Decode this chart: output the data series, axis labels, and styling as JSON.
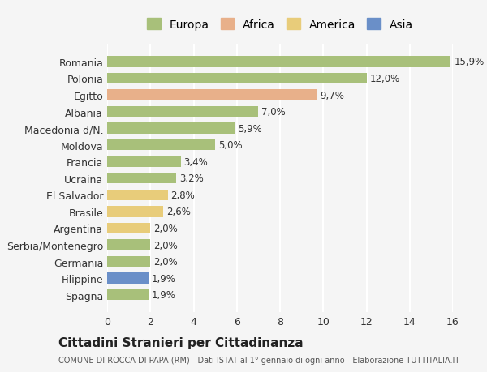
{
  "categories": [
    "Romania",
    "Polonia",
    "Egitto",
    "Albania",
    "Macedonia d/N.",
    "Moldova",
    "Francia",
    "Ucraina",
    "El Salvador",
    "Brasile",
    "Argentina",
    "Serbia/Montenegro",
    "Germania",
    "Filippine",
    "Spagna"
  ],
  "values": [
    15.9,
    12.0,
    9.7,
    7.0,
    5.9,
    5.0,
    3.4,
    3.2,
    2.8,
    2.6,
    2.0,
    2.0,
    2.0,
    1.9,
    1.9
  ],
  "labels": [
    "15,9%",
    "12,0%",
    "9,7%",
    "7,0%",
    "5,9%",
    "5,0%",
    "3,4%",
    "3,2%",
    "2,8%",
    "2,6%",
    "2,0%",
    "2,0%",
    "2,0%",
    "1,9%",
    "1,9%"
  ],
  "continents": [
    "Europa",
    "Europa",
    "Africa",
    "Europa",
    "Europa",
    "Europa",
    "Europa",
    "Europa",
    "America",
    "America",
    "America",
    "Europa",
    "Europa",
    "Asia",
    "Europa"
  ],
  "colors": {
    "Europa": "#a8c07a",
    "Africa": "#e8b08a",
    "America": "#e8cc7a",
    "Asia": "#6a8fc8"
  },
  "legend_colors": {
    "Europa": "#a8c07a",
    "Africa": "#e8b08a",
    "America": "#e8cc7a",
    "Asia": "#6a8fc8"
  },
  "xlim": [
    0,
    16
  ],
  "xticks": [
    0,
    2,
    4,
    6,
    8,
    10,
    12,
    14,
    16
  ],
  "title": "Cittadini Stranieri per Cittadinanza",
  "subtitle": "COMUNE DI ROCCA DI PAPA (RM) - Dati ISTAT al 1° gennaio di ogni anno - Elaborazione TUTTITALIA.IT",
  "background_color": "#f5f5f5",
  "grid_color": "#ffffff",
  "bar_height": 0.65
}
